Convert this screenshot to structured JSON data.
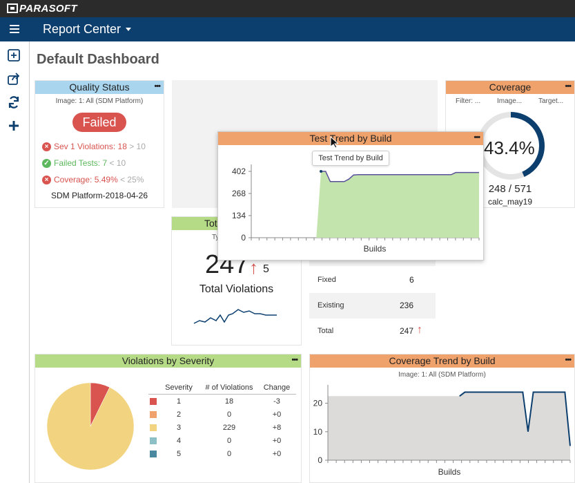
{
  "app": {
    "brand": "PARASOFT",
    "nav_title": "Report Center"
  },
  "page": {
    "title": "Default Dashboard"
  },
  "sidebar": {
    "icons": [
      "add-widget-icon",
      "share-icon",
      "refresh-icon",
      "plus-icon"
    ]
  },
  "quality_status": {
    "title": "Quality Status",
    "image_line": "Image: 1: All (SDM Platform)",
    "status": "Failed",
    "checks": [
      {
        "label": "Sev 1 Violations:",
        "value": "18",
        "threshold": "> 10",
        "ok": false
      },
      {
        "label": "Failed Tests:",
        "value": "7",
        "threshold": "< 10",
        "ok": true
      },
      {
        "label": "Coverage:",
        "value": "5.49%",
        "threshold": "< 25%",
        "ok": false
      }
    ],
    "build": "SDM Platform-2018-04-26"
  },
  "coverage": {
    "title": "Coverage",
    "filter_labels": [
      "Filter: ...",
      "Image...",
      "Target..."
    ],
    "percent": "43.4%",
    "percent_value": 43.4,
    "ratio": "248 / 571",
    "name": "calc_may19"
  },
  "test_trend": {
    "title": "Test Trend by Build",
    "tooltip": "Test Trend by Build",
    "xlabel": "Builds",
    "yticks": [
      "402",
      "268",
      "134",
      "0"
    ]
  },
  "total_violations": {
    "title_partial": "Tot",
    "type_partial": "Ty",
    "count": "247",
    "delta": "5",
    "label": "Total Violations",
    "arrow": "↑"
  },
  "violation_summary": {
    "rows": [
      {
        "label": "Fixed",
        "value": "6"
      },
      {
        "label": "Existing",
        "value": "236"
      },
      {
        "label": "Total",
        "value": "247",
        "arrow": "↑"
      }
    ]
  },
  "violations_by_severity": {
    "title": "Violations by Severity",
    "headers": [
      "Severity",
      "# of Violations",
      "Change"
    ],
    "rows": [
      {
        "severity": "1",
        "count": "18",
        "change": "-3",
        "color": "#d9534f"
      },
      {
        "severity": "2",
        "count": "0",
        "change": "+0",
        "color": "#f0a26c"
      },
      {
        "severity": "3",
        "count": "229",
        "change": "+8",
        "color": "#f2d37f"
      },
      {
        "severity": "4",
        "count": "0",
        "change": "+0",
        "color": "#8cc0c6"
      },
      {
        "severity": "5",
        "count": "0",
        "change": "+0",
        "color": "#4a88a0"
      }
    ]
  },
  "coverage_trend": {
    "title": "Coverage Trend by Build",
    "image_line": "Image: 1: All (SDM Platform)",
    "xlabel": "Builds",
    "yticks": [
      "20",
      "10",
      "0"
    ]
  },
  "chart_data": [
    {
      "type": "area",
      "title": "Test Trend by Build",
      "xlabel": "Builds",
      "ylabel": "",
      "ylim": [
        0,
        402
      ],
      "series": [
        {
          "values": [
            0,
            0,
            0,
            0,
            0,
            0,
            0,
            0,
            0,
            0,
            0,
            0,
            0,
            0,
            0,
            402,
            402,
            340,
            340,
            340,
            340,
            355,
            380,
            382,
            382,
            382,
            382,
            382,
            382,
            382,
            382,
            382,
            382,
            382,
            382,
            382,
            382,
            382,
            382,
            382,
            382,
            382,
            382,
            382,
            395,
            395,
            395,
            395,
            395,
            395
          ]
        }
      ]
    },
    {
      "type": "pie",
      "title": "Violations by Severity",
      "categories": [
        "1",
        "2",
        "3",
        "4",
        "5"
      ],
      "values": [
        18,
        0,
        229,
        0,
        0
      ]
    },
    {
      "type": "area",
      "title": "Coverage Trend by Build",
      "xlabel": "Builds",
      "ylabel": "",
      "ylim": [
        0,
        25
      ],
      "series": [
        {
          "values": [
            22.5,
            22.5,
            22.5,
            22.5,
            22.5,
            22.5,
            22.5,
            22.5,
            22.5,
            22.5,
            22.5,
            22.5,
            22.5,
            22.5,
            22.5,
            22.5,
            22.5,
            22.5,
            22.5,
            22.5,
            22.5,
            22.5,
            22.5,
            22.5,
            22.5,
            22.5,
            23.9,
            23.9,
            23.9,
            23.9,
            23.9,
            23.9,
            23.9,
            23.9,
            23.9,
            23.9,
            23.9,
            23.9,
            10.0,
            23.9,
            23.9,
            23.9,
            23.9,
            23.9,
            23.9,
            23.9,
            5.0
          ]
        }
      ]
    }
  ]
}
